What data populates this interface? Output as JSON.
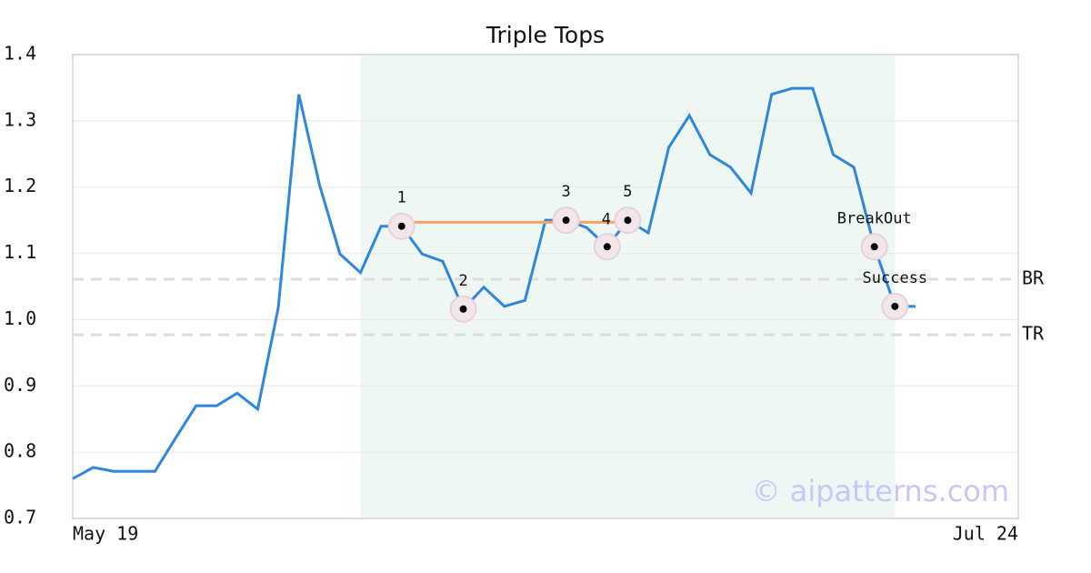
{
  "chart_data": {
    "type": "line",
    "title": "Triple Tops",
    "watermark": "© aipatterns.com",
    "categories": [
      "May 19",
      null,
      null,
      null,
      null,
      null,
      null,
      null,
      null,
      null,
      null,
      null,
      null,
      null,
      null,
      null,
      null,
      null,
      null,
      null,
      null,
      null,
      null,
      null,
      null,
      null,
      null,
      null,
      null,
      null,
      null,
      null,
      null,
      null,
      null,
      null,
      null,
      null,
      null,
      null,
      null,
      null,
      null,
      null,
      null,
      null,
      "Jul 24"
    ],
    "series": [
      {
        "color": "#2e86de",
        "values": [
          0.76,
          0.777,
          0.771,
          0.771,
          0.771,
          0.821,
          0.87,
          0.87,
          0.889,
          0.865,
          1.018,
          1.34,
          1.204,
          1.099,
          1.071,
          1.141,
          1.141,
          1.099,
          1.088,
          1.016,
          1.049,
          1.02,
          1.029,
          1.15,
          1.15,
          1.139,
          1.11,
          1.15,
          1.131,
          1.26,
          1.308,
          1.249,
          1.23,
          1.191,
          1.34,
          1.349,
          1.349,
          1.249,
          1.23,
          1.11,
          1.02,
          1.02,
          null,
          null,
          null,
          null,
          null
        ]
      }
    ],
    "ylim": [
      0.7,
      1.4
    ],
    "yticks": [
      0.7,
      0.8,
      0.9,
      {
        "value": 1,
        "label": "1.0"
      },
      1.1,
      1.2,
      1.3,
      1.4
    ],
    "grid": true,
    "pattern_range": [
      14,
      40
    ],
    "pattern_color": "#eef7f3",
    "resistance": {
      "value": 1.147,
      "from": 16,
      "to": 27,
      "color": "#f4a460"
    },
    "levels": [
      {
        "label": "BR",
        "value": 1.061
      },
      {
        "label": "TR",
        "value": 0.977
      }
    ],
    "markers": [
      {
        "label": "1",
        "index": 16
      },
      {
        "label": "2",
        "index": 19
      },
      {
        "label": "3",
        "index": 24
      },
      {
        "label": "4",
        "index": 26
      },
      {
        "label": "5",
        "index": 27
      },
      {
        "label": "BreakOut",
        "index": 39
      },
      {
        "label": "Success",
        "index": 40
      }
    ]
  }
}
